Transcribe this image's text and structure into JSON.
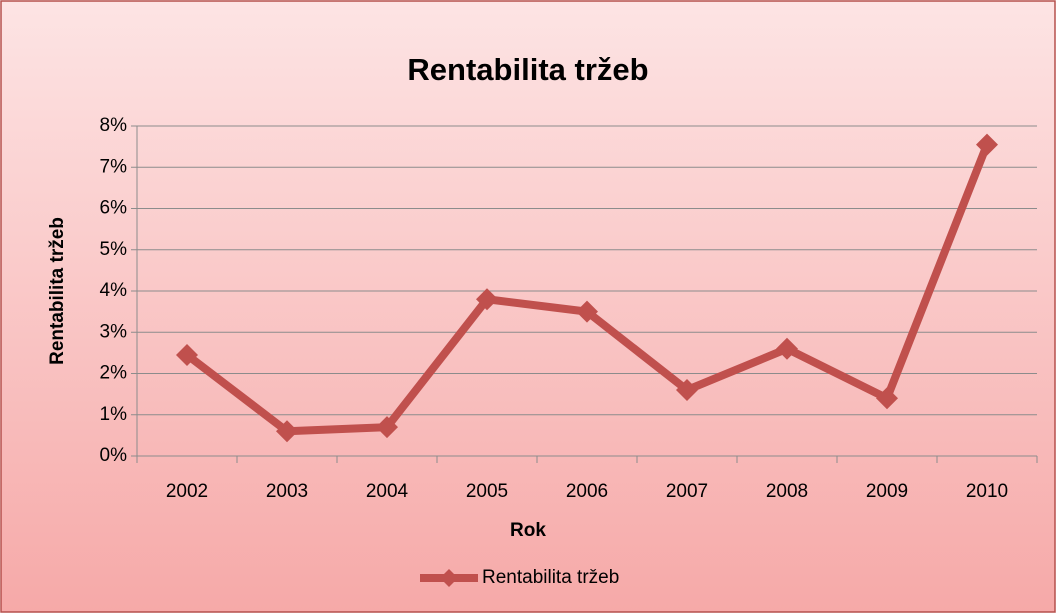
{
  "chart_data": {
    "type": "line",
    "title": "Rentabilita tržeb",
    "x_label": "Rok",
    "y_label": "Rentabilita tržeb",
    "categories": [
      "2002",
      "2003",
      "2004",
      "2005",
      "2006",
      "2007",
      "2008",
      "2009",
      "2010"
    ],
    "series": [
      {
        "name": "Rentabilita tržeb",
        "color": "#c0504d",
        "values": [
          2.45,
          0.6,
          0.7,
          3.8,
          3.5,
          1.6,
          2.6,
          1.4,
          7.55
        ]
      }
    ],
    "ylim": [
      0,
      8
    ],
    "yticks": [
      {
        "value": 0,
        "label": "0%"
      },
      {
        "value": 1,
        "label": "1%"
      },
      {
        "value": 2,
        "label": "2%"
      },
      {
        "value": 3,
        "label": "3%"
      },
      {
        "value": 4,
        "label": "4%"
      },
      {
        "value": 5,
        "label": "5%"
      },
      {
        "value": 6,
        "label": "6%"
      },
      {
        "value": 7,
        "label": "7%"
      },
      {
        "value": 8,
        "label": "8%"
      }
    ],
    "grid": true,
    "legend": "bottom"
  }
}
